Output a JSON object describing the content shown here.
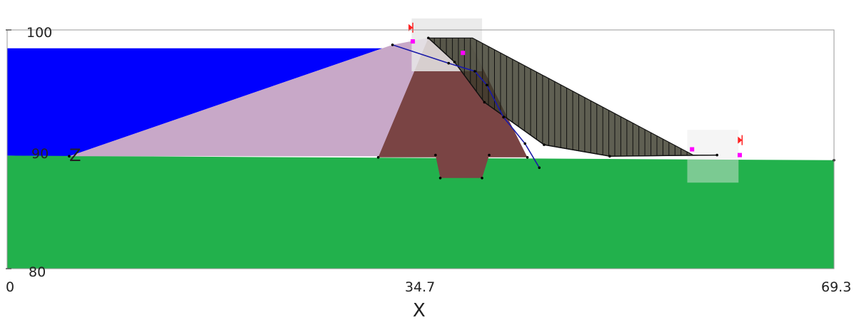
{
  "axes": {
    "x_label": "X",
    "z_label": "Z",
    "x_ticks": [
      "0",
      "34.7",
      "69.3"
    ],
    "z_ticks": [
      "100",
      "90",
      "80"
    ]
  },
  "colors": {
    "water": "#0000ff",
    "foundation": "#22b14c",
    "shell": "#c8a8c8",
    "core": "#7a4444",
    "slip_mass": "#3c3c2c",
    "phreatic_line": "#1a1aa8",
    "marker_red": "#ff2020",
    "marker_magenta": "#ff00ff",
    "highlight": "#e8e8e8",
    "frame": "#9a9a9a"
  },
  "chart_data": {
    "type": "diagram",
    "x_range": [
      0,
      69.3
    ],
    "z_range": [
      80,
      100.8
    ],
    "reservoir_level": 99.2,
    "foundation_profile": [
      [
        0,
        89.85
      ],
      [
        69.3,
        89.45
      ]
    ],
    "upstream_shell": [
      [
        5.2,
        89.8
      ],
      [
        32.3,
        99.5
      ],
      [
        35.3,
        100.1
      ],
      [
        35.3,
        89.8
      ]
    ],
    "clay_core": [
      [
        31.1,
        89.7
      ],
      [
        35.3,
        100.1
      ],
      [
        38.6,
        100.1
      ],
      [
        43.6,
        89.7
      ]
    ],
    "cutoff_trench": [
      [
        35.9,
        89.9
      ],
      [
        40.4,
        89.9
      ],
      [
        39.8,
        87.9
      ],
      [
        36.3,
        87.9
      ]
    ],
    "downstream_slip_mass": [
      [
        35.3,
        100.1
      ],
      [
        39.0,
        100.1
      ],
      [
        57.5,
        89.9
      ],
      [
        59.5,
        89.9
      ],
      [
        50.5,
        89.8
      ],
      [
        45.0,
        90.8
      ],
      [
        40.0,
        94.5
      ],
      [
        37.5,
        98.0
      ]
    ],
    "slip_circle": [
      [
        35.3,
        100.1
      ],
      [
        37.5,
        98.0
      ],
      [
        40.0,
        94.5
      ],
      [
        45.0,
        90.8
      ],
      [
        50.5,
        89.8
      ],
      [
        59.5,
        89.9
      ]
    ],
    "phreatic_line": [
      [
        32.3,
        99.5
      ],
      [
        37.0,
        97.9
      ],
      [
        39.2,
        97.2
      ],
      [
        40.2,
        96.0
      ],
      [
        41.6,
        93.2
      ],
      [
        43.4,
        90.9
      ],
      [
        44.6,
        88.8
      ]
    ],
    "search_windows": [
      {
        "x": [
          33.9,
          39.8
        ],
        "z": [
          97.2,
          101.8
        ]
      },
      {
        "x": [
          57.0,
          61.3
        ],
        "z": [
          87.5,
          92.1
        ]
      }
    ],
    "markers_red": [
      [
        34.0,
        101.0
      ],
      [
        61.6,
        91.2
      ]
    ],
    "markers_magenta": [
      [
        34.0,
        99.8
      ],
      [
        38.2,
        98.8
      ],
      [
        57.4,
        90.4
      ],
      [
        61.4,
        89.9
      ]
    ]
  }
}
